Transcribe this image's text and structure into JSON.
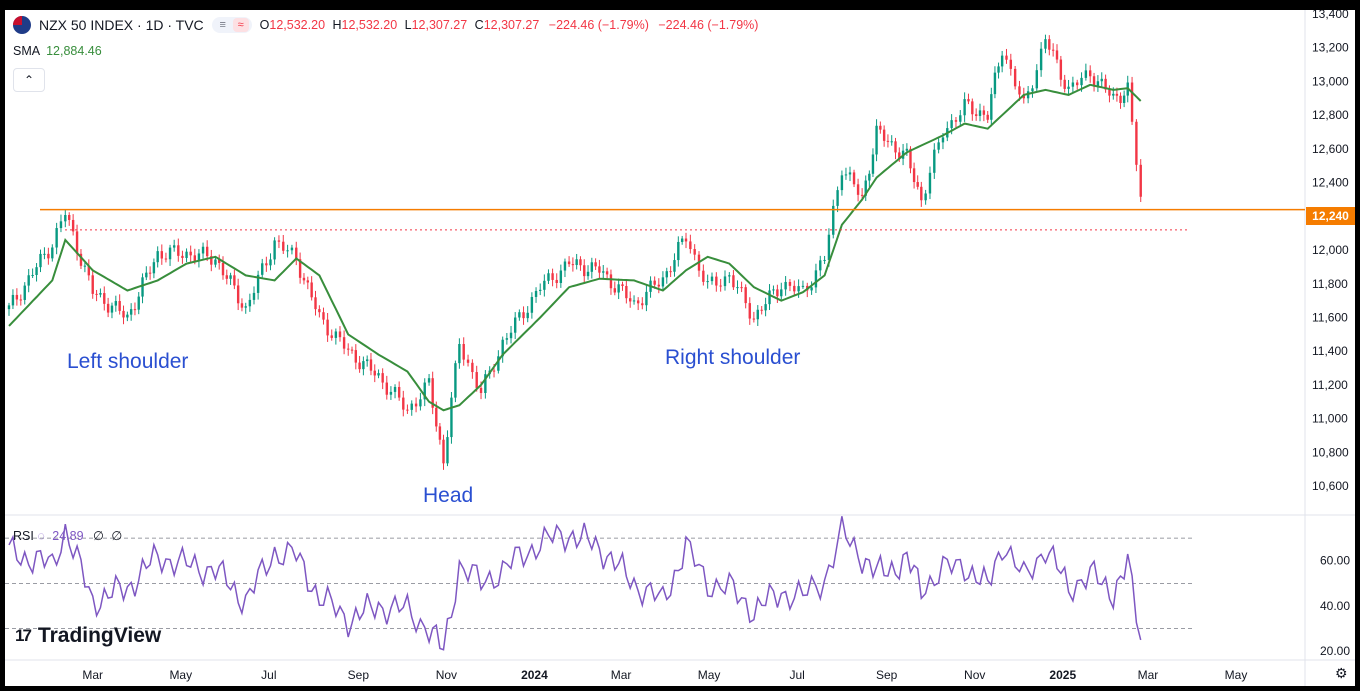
{
  "header": {
    "symbol": "NZX 50 INDEX · 1D · TVC",
    "open_label": "O",
    "open": "12,532.20",
    "high_label": "H",
    "high": "12,532.20",
    "low_label": "L",
    "low": "12,307.27",
    "close_label": "C",
    "close": "12,307.27",
    "change": "−224.46 (−1.79%)",
    "change_repeat": "−224.46 (−1.79%)",
    "pill_a": "≡",
    "pill_b": "≈"
  },
  "sma": {
    "label": "SMA",
    "value": "12,884.46"
  },
  "rsi": {
    "label": "RSI",
    "value": "24.89",
    "extra1": "∅",
    "extra2": "∅"
  },
  "annotations": {
    "left_shoulder": "Left shoulder",
    "head": "Head",
    "right_shoulder": "Right shoulder"
  },
  "price_tag": "12,240",
  "logo": {
    "mark": "17",
    "text": "TradingView"
  },
  "colors": {
    "up": "#089981",
    "down": "#f23645",
    "sma": "#388e3c",
    "rsi": "#7e57c2",
    "resistance": "#f57c00",
    "annotation": "#2a4fd1"
  },
  "chart_data": {
    "type": "line",
    "x_tick_labels": [
      "Mar",
      "May",
      "Jul",
      "Sep",
      "Nov",
      "2024",
      "Mar",
      "May",
      "Jul",
      "Sep",
      "Nov",
      "2025",
      "Mar",
      "May"
    ],
    "y_tick_labels": [
      "13,400",
      "13,200",
      "13,000",
      "12,800",
      "12,600",
      "12,400",
      "12,000",
      "11,800",
      "11,600",
      "11,400",
      "11,200",
      "11,000",
      "10,800",
      "10,600"
    ],
    "ylim": [
      10500,
      13400
    ],
    "price_dates": [
      "2023-01-02",
      "2023-02-01",
      "2023-02-10",
      "2023-03-01",
      "2023-03-25",
      "2023-04-15",
      "2023-05-05",
      "2023-05-25",
      "2023-06-15",
      "2023-07-05",
      "2023-07-20",
      "2023-08-05",
      "2023-08-25",
      "2023-09-15",
      "2023-10-05",
      "2023-10-20",
      "2023-10-30",
      "2023-11-10",
      "2023-11-25",
      "2023-12-10",
      "2024-01-05",
      "2024-01-25",
      "2024-02-15",
      "2024-03-10",
      "2024-03-30",
      "2024-04-15",
      "2024-04-30",
      "2024-05-15",
      "2024-06-01",
      "2024-06-20",
      "2024-07-05",
      "2024-07-20",
      "2024-08-01",
      "2024-08-15",
      "2024-08-25",
      "2024-09-15",
      "2024-09-25",
      "2024-10-10",
      "2024-10-25",
      "2024-11-10",
      "2024-11-20",
      "2024-12-05",
      "2024-12-20",
      "2025-01-05",
      "2025-01-20",
      "2025-02-05",
      "2025-02-15",
      "2025-02-24"
    ],
    "price_values": [
      11650,
      12040,
      12220,
      11750,
      11600,
      11980,
      11980,
      11950,
      11650,
      12050,
      11950,
      11600,
      11400,
      11250,
      11050,
      11200,
      10750,
      11450,
      11150,
      11450,
      11780,
      11920,
      11880,
      11680,
      11830,
      12080,
      11780,
      11850,
      11600,
      11800,
      11750,
      11950,
      12500,
      12300,
      12700,
      12550,
      12300,
      12700,
      12850,
      12800,
      13200,
      12850,
      13250,
      12950,
      13050,
      12900,
      12950,
      12310
    ],
    "sma_values": [
      11550,
      11820,
      12060,
      11880,
      11760,
      11820,
      11920,
      11960,
      11850,
      11820,
      11950,
      11850,
      11500,
      11380,
      11280,
      11100,
      11050,
      11080,
      11200,
      11380,
      11600,
      11780,
      11830,
      11820,
      11760,
      11880,
      11960,
      11920,
      11780,
      11700,
      11750,
      11850,
      12150,
      12300,
      12430,
      12580,
      12620,
      12680,
      12750,
      12720,
      12800,
      12920,
      12950,
      12920,
      12980,
      12950,
      12960,
      12884
    ],
    "rsi_values": [
      64,
      58,
      74,
      42,
      48,
      62,
      58,
      56,
      42,
      64,
      62,
      44,
      34,
      40,
      38,
      30,
      20,
      58,
      50,
      56,
      68,
      72,
      66,
      50,
      42,
      66,
      50,
      48,
      38,
      46,
      44,
      52,
      72,
      62,
      54,
      60,
      48,
      56,
      58,
      48,
      68,
      52,
      66,
      48,
      54,
      46,
      58,
      25
    ],
    "resistance_level": 12240,
    "neckline_level": 12120,
    "rsi_levels": [
      70,
      50,
      30
    ],
    "rsi_tick_labels": [
      "60.00",
      "40.00",
      "20.00"
    ],
    "rsi_ylim": [
      17,
      78
    ]
  }
}
